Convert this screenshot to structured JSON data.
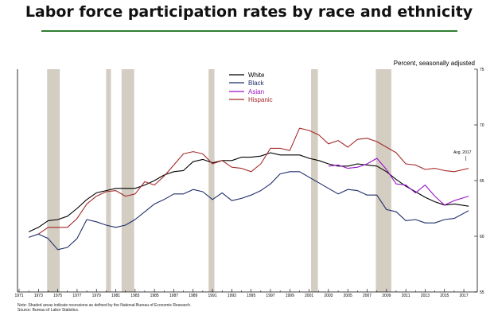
{
  "page_title": "Labor force participation rates by race and ethnicity",
  "footnotes": {
    "note": "Note: Shaded areas indicate recessions as defined by the National Bureau of Economic Research.",
    "source": "Source: Bureau of Labor Statistics."
  },
  "colors": {
    "title_rule": "#2e7d32",
    "recession_shade": "#d3cdc2",
    "white_series": "#000000",
    "black_series": "#1f2d6b",
    "asian_series": "#9b14c8",
    "hispanic_series": "#a52a2a"
  },
  "chart_data": {
    "type": "line",
    "unit_label": "Percent, seasonally adjusted",
    "y_range": [
      55,
      75
    ],
    "y_ticks": [
      "55",
      "60",
      "65",
      "70",
      "75"
    ],
    "x_range": [
      1971,
      2017.9
    ],
    "x_ticks": [
      "1971",
      "1973",
      "1975",
      "1977",
      "1979",
      "1981",
      "1983",
      "1985",
      "1987",
      "1989",
      "1991",
      "1993",
      "1995",
      "1997",
      "1999",
      "2001",
      "2003",
      "2005",
      "2007",
      "2009",
      "2011",
      "2013",
      "2015",
      "2017"
    ],
    "recessions": [
      {
        "start": 1973.9,
        "end": 1975.2
      },
      {
        "start": 1980.0,
        "end": 1980.5
      },
      {
        "start": 1981.6,
        "end": 1982.9
      },
      {
        "start": 1990.6,
        "end": 1991.2
      },
      {
        "start": 2001.2,
        "end": 2001.9
      },
      {
        "start": 2007.9,
        "end": 2009.5
      }
    ],
    "legend_position": "top-center",
    "annotation": "Avg. 2017",
    "series": [
      {
        "name": "White",
        "x": [
          1972,
          1973,
          1974,
          1975,
          1976,
          1977,
          1978,
          1979,
          1980,
          1981,
          1982,
          1983,
          1984,
          1985,
          1986,
          1987,
          1988,
          1989,
          1990,
          1991,
          1992,
          1993,
          1994,
          1995,
          1996,
          1997,
          1998,
          1999,
          2000,
          2001,
          2002,
          2003,
          2004,
          2005,
          2006,
          2007,
          2008,
          2009,
          2010,
          2011,
          2012,
          2013,
          2014,
          2015,
          2016,
          2017.5
        ],
        "values": [
          60.4,
          60.8,
          61.4,
          61.5,
          61.8,
          62.5,
          63.3,
          63.9,
          64.1,
          64.3,
          64.3,
          64.3,
          64.6,
          65.0,
          65.5,
          65.8,
          65.9,
          66.7,
          66.9,
          66.6,
          66.8,
          66.8,
          67.1,
          67.1,
          67.2,
          67.5,
          67.3,
          67.3,
          67.3,
          67.0,
          66.8,
          66.5,
          66.3,
          66.3,
          66.5,
          66.4,
          66.3,
          65.8,
          65.1,
          64.5,
          64.0,
          63.5,
          63.1,
          62.8,
          62.9,
          62.7
        ]
      },
      {
        "name": "Black",
        "x": [
          1972,
          1973,
          1974,
          1975,
          1976,
          1977,
          1978,
          1979,
          1980,
          1981,
          1982,
          1983,
          1984,
          1985,
          1986,
          1987,
          1988,
          1989,
          1990,
          1991,
          1992,
          1993,
          1994,
          1995,
          1996,
          1997,
          1998,
          1999,
          2000,
          2001,
          2002,
          2003,
          2004,
          2005,
          2006,
          2007,
          2008,
          2009,
          2010,
          2011,
          2012,
          2013,
          2014,
          2015,
          2016,
          2017.5
        ],
        "values": [
          59.9,
          60.2,
          59.8,
          58.8,
          59.0,
          59.8,
          61.5,
          61.3,
          61.0,
          60.8,
          61.0,
          61.5,
          62.2,
          62.9,
          63.3,
          63.8,
          63.8,
          64.2,
          64.0,
          63.3,
          63.9,
          63.2,
          63.4,
          63.7,
          64.1,
          64.7,
          65.6,
          65.8,
          65.8,
          65.3,
          64.8,
          64.3,
          63.8,
          64.2,
          64.1,
          63.7,
          63.7,
          62.4,
          62.2,
          61.4,
          61.5,
          61.2,
          61.2,
          61.5,
          61.6,
          62.3
        ]
      },
      {
        "name": "Asian",
        "x": [
          2003,
          2004,
          2005,
          2006,
          2007,
          2008,
          2009,
          2010,
          2011,
          2012,
          2013,
          2014,
          2015,
          2016,
          2017.5
        ],
        "values": [
          66.3,
          66.4,
          66.1,
          66.2,
          66.5,
          67.0,
          66.0,
          64.7,
          64.6,
          63.9,
          64.6,
          63.6,
          62.8,
          63.2,
          63.6
        ]
      },
      {
        "name": "Hispanic",
        "x": [
          1973,
          1974,
          1975,
          1976,
          1977,
          1978,
          1979,
          1980,
          1981,
          1982,
          1983,
          1984,
          1985,
          1986,
          1987,
          1988,
          1989,
          1990,
          1991,
          1992,
          1993,
          1994,
          1995,
          1996,
          1997,
          1998,
          1999,
          2000,
          2001,
          2002,
          2003,
          2004,
          2005,
          2006,
          2007,
          2008,
          2009,
          2010,
          2011,
          2012,
          2013,
          2014,
          2015,
          2016,
          2017.5
        ],
        "values": [
          60.2,
          60.8,
          60.8,
          60.8,
          61.6,
          62.9,
          63.6,
          64.0,
          64.1,
          63.6,
          63.8,
          64.9,
          64.6,
          65.4,
          66.4,
          67.4,
          67.6,
          67.4,
          66.5,
          66.8,
          66.2,
          66.1,
          65.8,
          66.5,
          67.9,
          67.9,
          67.7,
          69.7,
          69.5,
          69.1,
          68.3,
          68.6,
          68.0,
          68.7,
          68.8,
          68.5,
          68.0,
          67.5,
          66.5,
          66.4,
          66.0,
          66.1,
          65.9,
          65.8,
          66.1
        ]
      }
    ]
  }
}
